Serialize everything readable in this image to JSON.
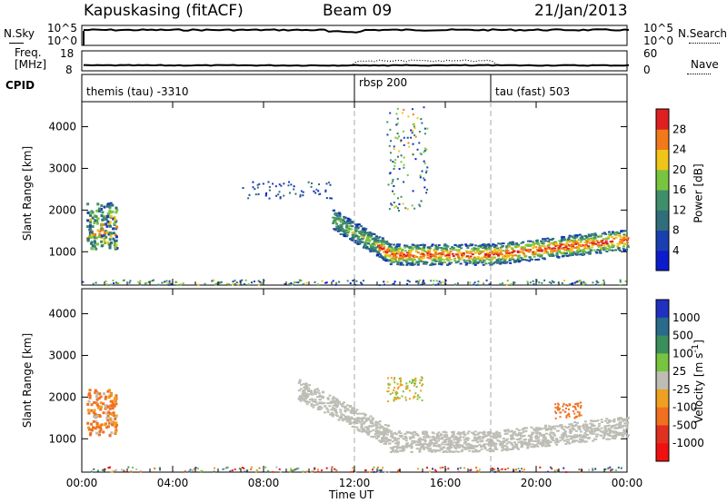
{
  "header": {
    "station": "Kapuskasing (fitACF)",
    "beam": "Beam 09",
    "date": "21/Jan/2013"
  },
  "top_panel": {
    "nsky_label": "N.Sky",
    "nsearch_label": "N.Search",
    "left_ticks": [
      "10^5",
      "10^0"
    ],
    "right_ticks": [
      "10^5",
      "10^0"
    ]
  },
  "freq_panel": {
    "freq_label_1": "Freq.",
    "freq_label_2": "[MHz]",
    "nave_label": "Nave",
    "left_ticks": [
      "18",
      "8"
    ],
    "right_ticks": [
      "60",
      "0"
    ]
  },
  "cpid": {
    "label": "CPID",
    "segments": [
      {
        "name": "themis (tau) -3310",
        "start_hour": 0
      },
      {
        "name": "rbsp 200",
        "start_hour": 12
      },
      {
        "name": "tau (fast) 503",
        "start_hour": 18
      }
    ]
  },
  "chart_data": [
    {
      "type": "heatmap",
      "title": "",
      "ylabel": "Slant Range [km]",
      "xlabel": "",
      "xlim_hours": [
        0,
        24
      ],
      "ylim": [
        200,
        4600
      ],
      "y_ticks": [
        "1000",
        "2000",
        "3000",
        "4000"
      ],
      "colorbar": {
        "label": "Power [dB]",
        "ticks": [
          "4",
          "8",
          "12",
          "16",
          "20",
          "24",
          "28"
        ],
        "colors": [
          "#0a1ccc",
          "#1a3fb0",
          "#2f6e7a",
          "#3f8f6a",
          "#78c43f",
          "#f0c418",
          "#f07a1a",
          "#e02020"
        ]
      },
      "features": [
        {
          "name": "early echo patch",
          "hours": [
            0.2,
            1.4
          ],
          "range_km": [
            1100,
            2300
          ]
        },
        {
          "name": "main echo band",
          "hours": [
            11.0,
            24.0
          ],
          "range_km": [
            700,
            2000
          ]
        }
      ]
    },
    {
      "type": "heatmap",
      "title": "",
      "ylabel": "Slant Range [km]",
      "xlabel": "Time UT",
      "xlim_hours": [
        0,
        24
      ],
      "ylim": [
        200,
        4600
      ],
      "y_ticks": [
        "1000",
        "2000",
        "3000",
        "4000"
      ],
      "x_ticks": [
        "00:00",
        "04:00",
        "08:00",
        "12:00",
        "16:00",
        "20:00",
        "00:00"
      ],
      "colorbar": {
        "label": "Velocity [m s^-1]",
        "ticks": [
          "1000",
          "500",
          "100",
          "25",
          "-25",
          "-100",
          "-500",
          "-1000"
        ],
        "colors": [
          "#2030c0",
          "#2a6a8a",
          "#3a8f5a",
          "#78c43f",
          "#bdbdb5",
          "#f0a020",
          "#f07020",
          "#e03020",
          "#f01010"
        ]
      }
    }
  ]
}
